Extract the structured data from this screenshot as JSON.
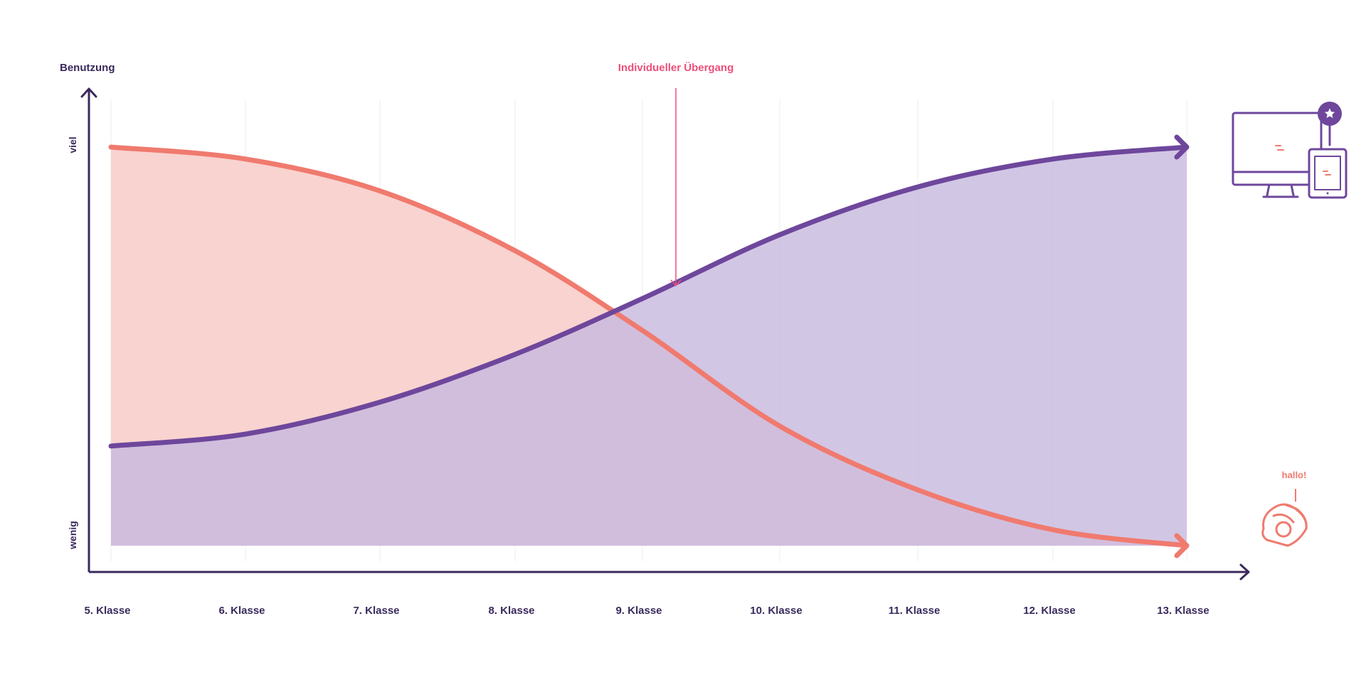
{
  "chart_data": {
    "type": "area",
    "title": "",
    "ylabel": "Benutzung",
    "ytick_labels": {
      "high": "viel",
      "low": "wenig"
    },
    "categories": [
      "5. Klasse",
      "6. Klasse",
      "7. Klasse",
      "8. Klasse",
      "9. Klasse",
      "10. Klasse",
      "11. Klasse",
      "12. Klasse",
      "13. Klasse"
    ],
    "ylim": [
      0,
      100
    ],
    "grid": true,
    "annotation": {
      "text": "Individueller Übergang",
      "x": 9.2
    },
    "series": [
      {
        "values": [
          100,
          97,
          89,
          74,
          54,
          30,
          14,
          4,
          0
        ],
        "color": "#f07a6e",
        "fill": "#f8d3cf"
      },
      {
        "values": [
          25,
          28,
          36,
          48,
          62,
          78,
          90,
          97,
          100
        ],
        "color": "#6e479c",
        "fill": "#c8b9df"
      }
    ],
    "icons": {
      "digital": {
        "name": "monitor-tablet-icon",
        "color": "#6e479c"
      },
      "analog": {
        "name": "eraser-icon",
        "label": "hallo!",
        "color": "#f07a6e"
      }
    },
    "colors": {
      "axis": "#3a2a5c",
      "annotation": "#ef4f7a",
      "grid": "#eeeeee"
    }
  }
}
